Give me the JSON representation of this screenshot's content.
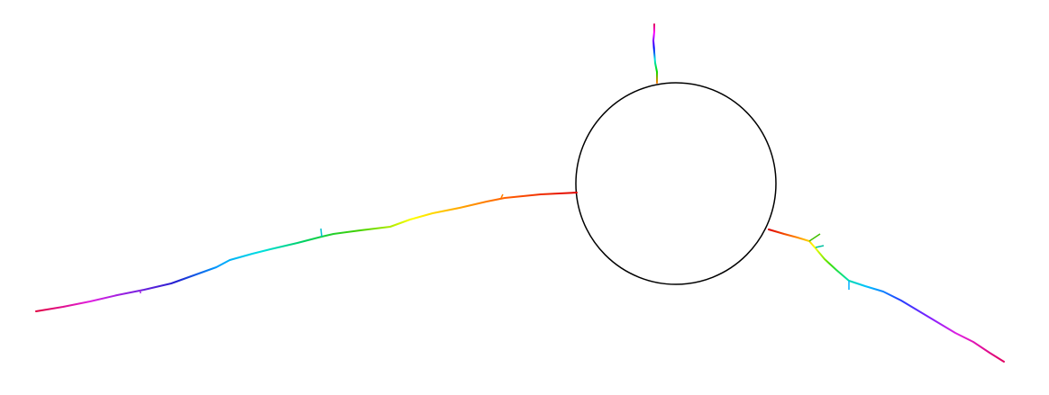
{
  "figure": {
    "description_type": "traced-neuron",
    "background_color": "#ffffff",
    "soma_stroke_color": "#000000",
    "branch_gradient_colors": [
      "#ff0000",
      "#ff8000",
      "#ffff00",
      "#00ff00",
      "#00ffff",
      "#0000ff",
      "#ff00ff"
    ]
  }
}
